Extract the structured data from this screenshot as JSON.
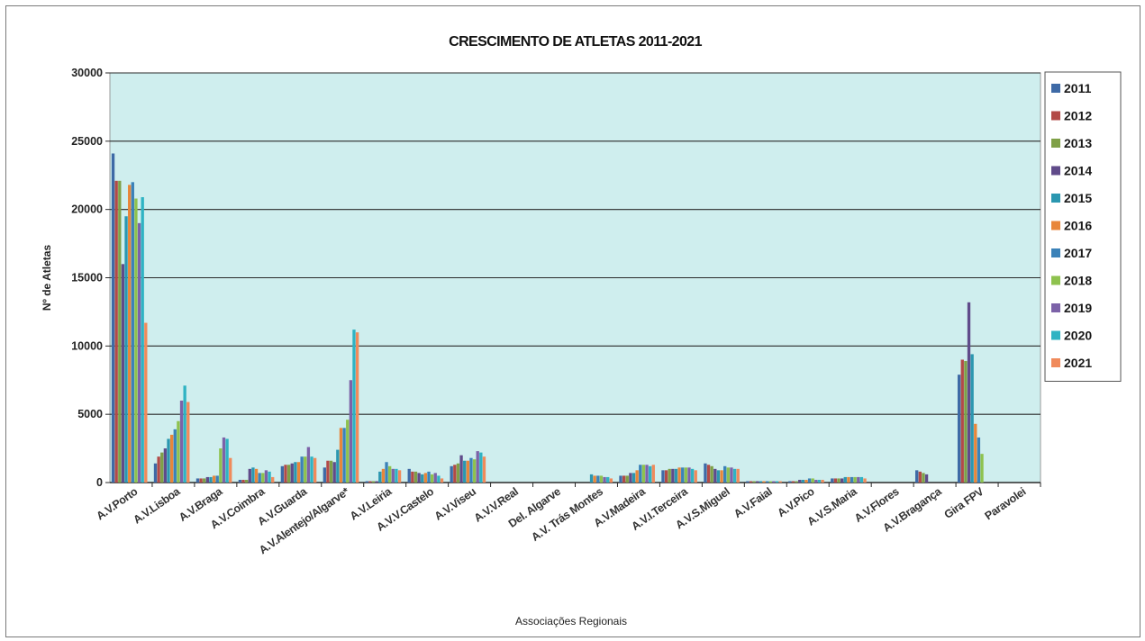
{
  "chart_data": {
    "type": "bar",
    "title": "CRESCIMENTO DE ATLETAS 2011-2021",
    "xlabel": "Associações Regionais",
    "ylabel": "Nº de Atletas",
    "ylim": [
      0,
      30000
    ],
    "yticks": [
      "0",
      "5000",
      "10000",
      "15000",
      "20000",
      "25000",
      "30000"
    ],
    "grid": "horizontal",
    "legend_position": "right",
    "plot_background": "#cfeeee",
    "categories": [
      "A.V.Porto",
      "A.V.Lisboa",
      "A.V.Braga",
      "A.V.Coimbra",
      "A.V.Guarda",
      "A.V.Alentejo/Algarve*",
      "A.V.Leiria",
      "A.V.V.Castelo",
      "A.V.Viseu",
      "A.V.V.Real",
      "Del. Algarve",
      "A.V. Trás Montes",
      "A.V.Madeira",
      "A.V.I.Terceira",
      "A.V.S.Miguel",
      "A.V.Faial",
      "A.V.Pico",
      "A.V.S.Maria",
      "A.V.Flores",
      "A.V.Bragança",
      "Gira FPV",
      "Paravolei"
    ],
    "series": [
      {
        "name": "2011",
        "color": "#3e6aa6",
        "values": [
          24100,
          1400,
          300,
          200,
          1200,
          1100,
          100,
          1000,
          1200,
          0,
          0,
          0,
          500,
          900,
          1400,
          100,
          100,
          300,
          0,
          900,
          7900,
          0
        ]
      },
      {
        "name": "2012",
        "color": "#b24a47",
        "values": [
          22100,
          1900,
          300,
          200,
          1300,
          1600,
          100,
          800,
          1300,
          0,
          0,
          0,
          500,
          900,
          1300,
          100,
          100,
          300,
          0,
          800,
          9000,
          0
        ]
      },
      {
        "name": "2013",
        "color": "#7fa047",
        "values": [
          22100,
          2200,
          300,
          200,
          1300,
          1600,
          100,
          800,
          1400,
          0,
          0,
          0,
          500,
          1000,
          1200,
          100,
          100,
          300,
          0,
          700,
          8900,
          0
        ]
      },
      {
        "name": "2014",
        "color": "#604b8a",
        "values": [
          16000,
          2500,
          400,
          1000,
          1400,
          1500,
          100,
          700,
          2000,
          0,
          0,
          0,
          700,
          1000,
          1000,
          100,
          200,
          300,
          0,
          600,
          13200,
          0
        ]
      },
      {
        "name": "2015",
        "color": "#2b97b0",
        "values": [
          19500,
          3200,
          400,
          1100,
          1500,
          2400,
          800,
          600,
          1600,
          0,
          0,
          600,
          700,
          1000,
          900,
          100,
          200,
          400,
          0,
          0,
          9400,
          0
        ]
      },
      {
        "name": "2016",
        "color": "#e8863a",
        "values": [
          21800,
          3500,
          500,
          1000,
          1500,
          4000,
          1000,
          700,
          1600,
          0,
          0,
          500,
          900,
          1100,
          900,
          100,
          200,
          400,
          0,
          0,
          4300,
          0
        ]
      },
      {
        "name": "2017",
        "color": "#3b82b8",
        "values": [
          22000,
          3900,
          500,
          700,
          1900,
          4000,
          1500,
          800,
          1800,
          0,
          0,
          500,
          1300,
          1100,
          1200,
          100,
          300,
          400,
          0,
          0,
          3300,
          0
        ]
      },
      {
        "name": "2018",
        "color": "#8ec24e",
        "values": [
          20800,
          4500,
          2500,
          700,
          1900,
          4600,
          1200,
          600,
          1700,
          0,
          0,
          500,
          1300,
          1100,
          1100,
          100,
          300,
          400,
          0,
          0,
          2100,
          0
        ]
      },
      {
        "name": "2019",
        "color": "#7c62a8",
        "values": [
          19000,
          6000,
          3300,
          900,
          2600,
          7500,
          1000,
          700,
          2300,
          0,
          0,
          400,
          1300,
          1100,
          1100,
          100,
          200,
          400,
          0,
          0,
          0,
          0
        ]
      },
      {
        "name": "2020",
        "color": "#2fb3c3",
        "values": [
          20900,
          7100,
          3200,
          800,
          1900,
          11200,
          1000,
          500,
          2200,
          0,
          0,
          400,
          1200,
          1000,
          1000,
          100,
          200,
          400,
          0,
          0,
          0,
          0
        ]
      },
      {
        "name": "2021",
        "color": "#f08a5b",
        "values": [
          11700,
          5900,
          1800,
          400,
          1800,
          11000,
          900,
          300,
          1900,
          0,
          0,
          300,
          1300,
          900,
          1000,
          100,
          200,
          300,
          0,
          0,
          0,
          0
        ]
      }
    ]
  }
}
